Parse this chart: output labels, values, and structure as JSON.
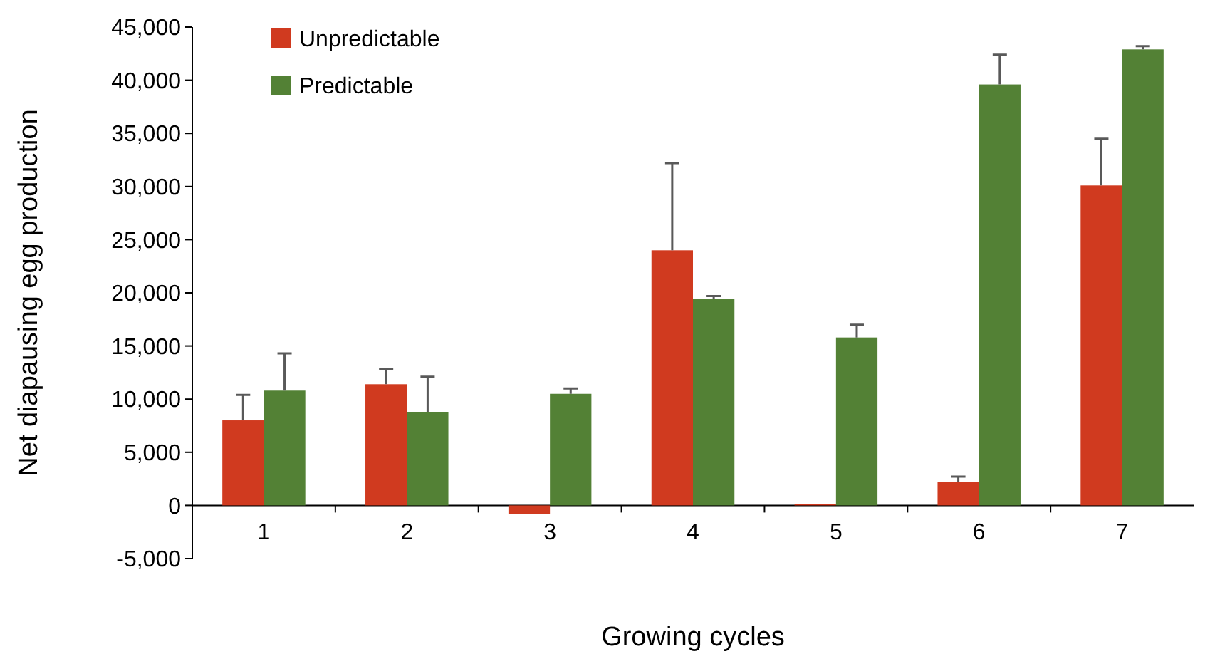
{
  "chart_data": {
    "type": "bar",
    "xlabel": "Growing cycles",
    "ylabel": "Net diapausing egg production",
    "categories": [
      "1",
      "2",
      "3",
      "4",
      "5",
      "6",
      "7"
    ],
    "series": [
      {
        "name": "Unpredictable",
        "color": "#d03a1f",
        "values": [
          8000,
          11400,
          -800,
          24000,
          100,
          2200,
          30100
        ],
        "errors": [
          [
            8000,
            10400
          ],
          [
            11400,
            12800
          ],
          null,
          [
            24000,
            32200
          ],
          null,
          [
            2200,
            2700
          ],
          [
            30100,
            34500
          ]
        ]
      },
      {
        "name": "Predictable",
        "color": "#538135",
        "values": [
          10800,
          8800,
          10500,
          19400,
          15800,
          39600,
          42900
        ],
        "errors": [
          [
            10800,
            14300
          ],
          [
            8800,
            12100
          ],
          [
            10500,
            11000
          ],
          [
            19400,
            19700
          ],
          [
            15800,
            17000
          ],
          [
            39600,
            42400
          ],
          [
            42900,
            43200
          ]
        ]
      }
    ],
    "ylim": [
      -5000,
      45000
    ],
    "yticks": [
      {
        "value": -5000,
        "label": "-5,000"
      },
      {
        "value": 0,
        "label": "0"
      },
      {
        "value": 5000,
        "label": "5,000"
      },
      {
        "value": 10000,
        "label": "10,000"
      },
      {
        "value": 15000,
        "label": "15,000"
      },
      {
        "value": 20000,
        "label": "20,000"
      },
      {
        "value": 25000,
        "label": "25,000"
      },
      {
        "value": 30000,
        "label": "30,000"
      },
      {
        "value": 35000,
        "label": "35,000"
      },
      {
        "value": 40000,
        "label": "40,000"
      },
      {
        "value": 45000,
        "label": "45,000"
      }
    ],
    "legend": "top left",
    "grid": false
  }
}
